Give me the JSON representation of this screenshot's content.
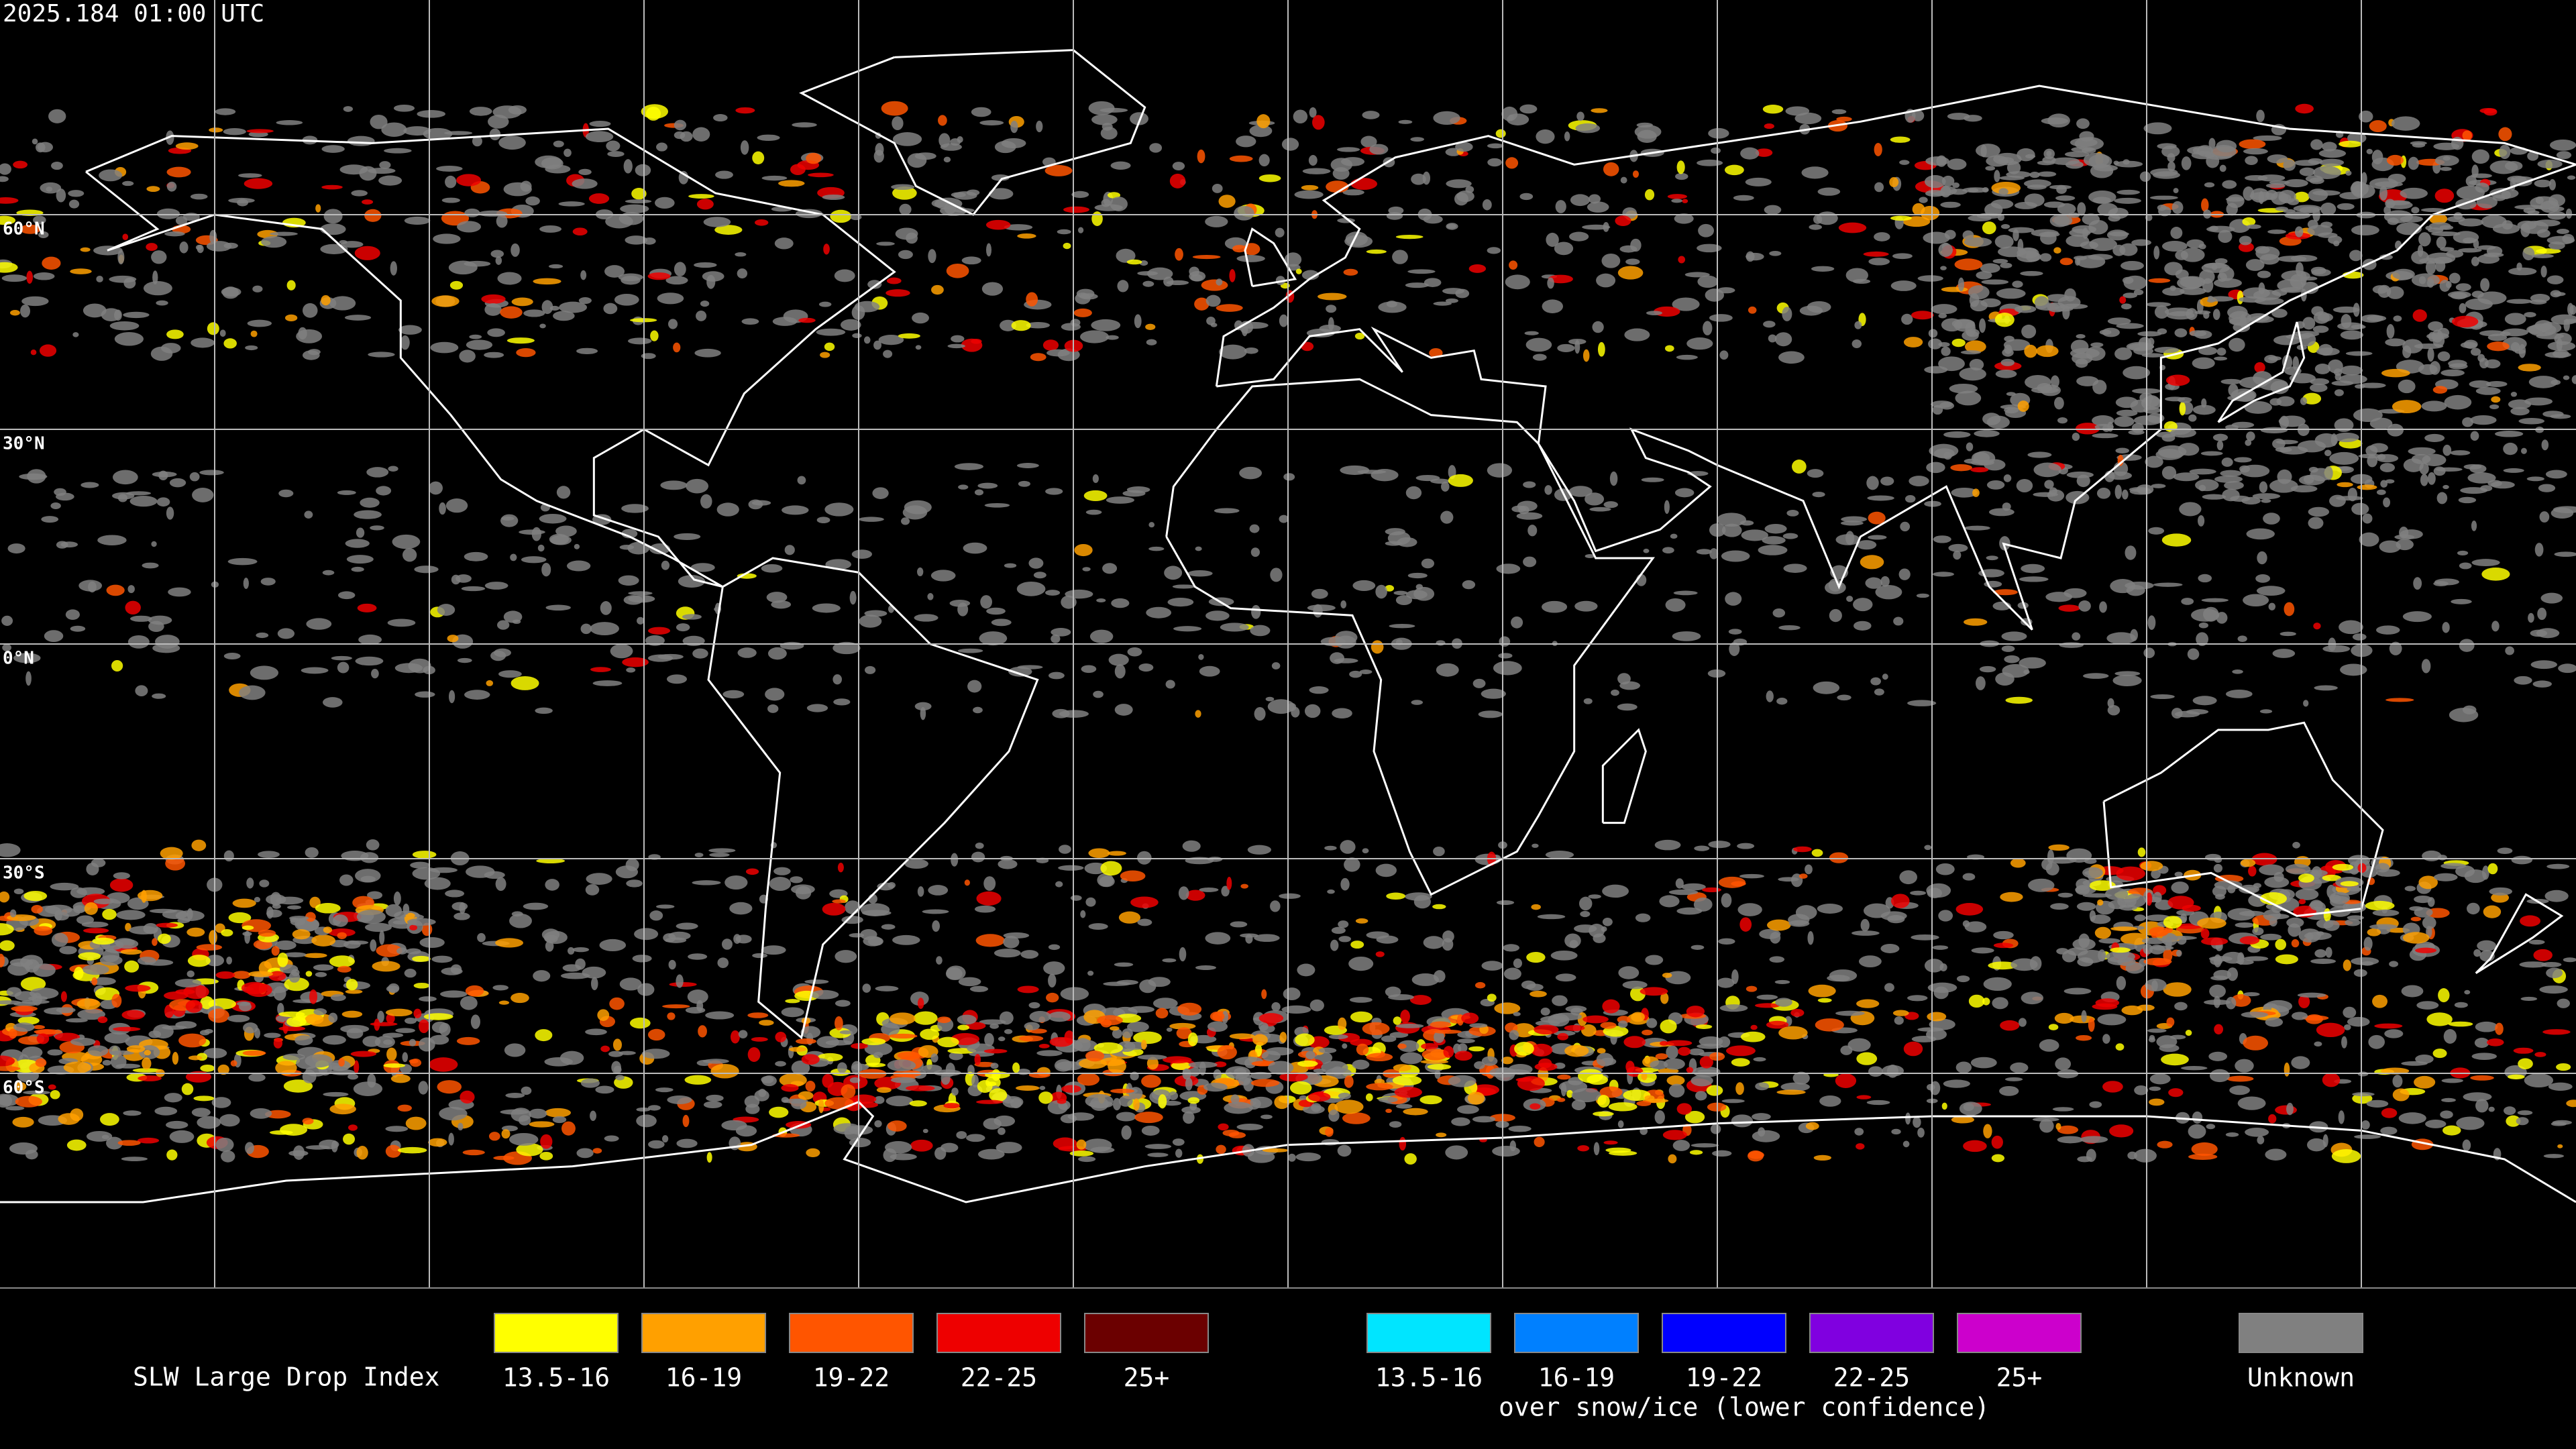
{
  "header": {
    "timestamp": "2025.184 01:00 UTC"
  },
  "map": {
    "latitude_labels": [
      "60°N",
      "30°N",
      "0°N",
      "30°S",
      "60°S"
    ]
  },
  "legend": {
    "title": "SLW Large Drop Index",
    "standard": [
      {
        "label": "13.5-16",
        "color": "#ffff00"
      },
      {
        "label": "16-19",
        "color": "#ffa000"
      },
      {
        "label": "19-22",
        "color": "#ff5500"
      },
      {
        "label": "22-25",
        "color": "#ee0000"
      },
      {
        "label": "25+",
        "color": "#6b0000"
      }
    ],
    "snow_ice": [
      {
        "label": "13.5-16",
        "color": "#00e5ff"
      },
      {
        "label": "16-19",
        "color": "#0080ff"
      },
      {
        "label": "19-22",
        "color": "#0000ff"
      },
      {
        "label": "22-25",
        "color": "#8000e0"
      },
      {
        "label": "25+",
        "color": "#cc00cc"
      }
    ],
    "snow_ice_caption": "over snow/ice (lower confidence)",
    "unknown": {
      "label": "Unknown",
      "color": "#808080"
    }
  }
}
